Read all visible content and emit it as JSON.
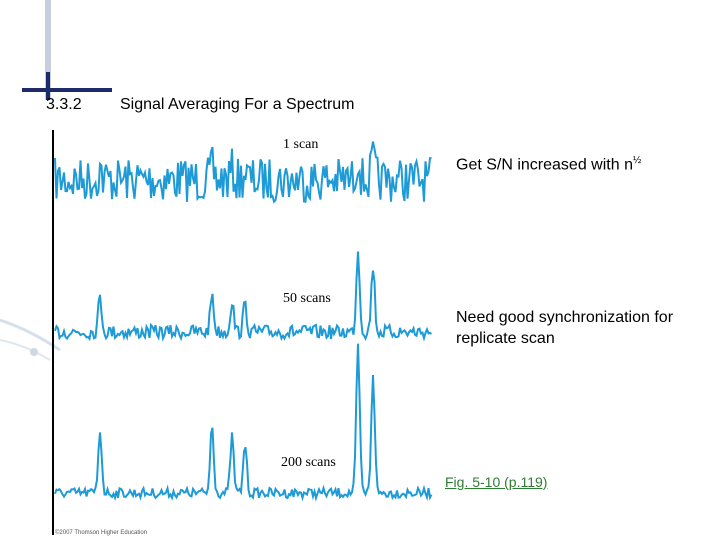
{
  "section_number": "3.3.2",
  "title": "Signal Averaging For a Spectrum",
  "figure": {
    "trace_labels": [
      "1 scan",
      "50 scans",
      "200 scans"
    ],
    "credit": "©2007 Thomson Higher Education"
  },
  "bullets": [
    {
      "text": "Get S/N increased with n",
      "superscript": "½"
    },
    {
      "text": "Need good synchronization for replicate scan"
    }
  ],
  "figure_link": "Fig. 5-10 (p.119)"
}
